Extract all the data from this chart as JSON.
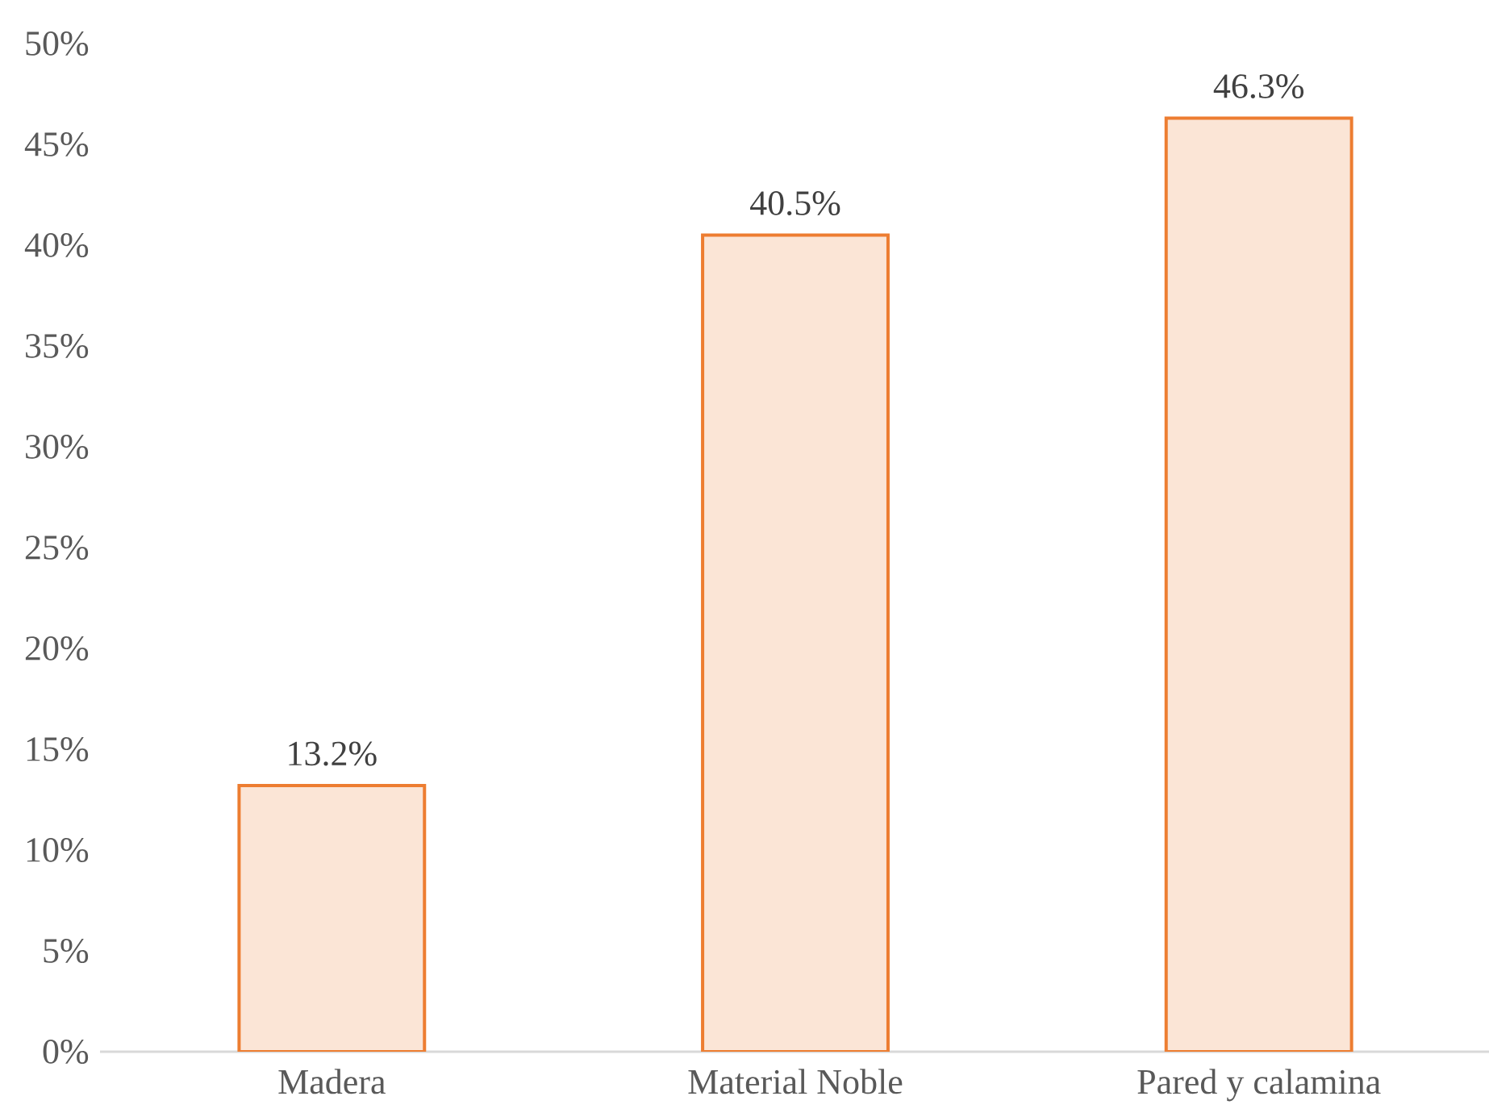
{
  "chart_data": {
    "type": "bar",
    "categories": [
      "Madera",
      "Material Noble",
      "Pared y calamina"
    ],
    "values": [
      13.2,
      40.5,
      46.3
    ],
    "value_labels": [
      "13.2%",
      "40.5%",
      "46.3%"
    ],
    "color": "#fbe5d6",
    "ylim": [
      0,
      50
    ],
    "yticks": [
      {
        "value": 0,
        "label": "0%"
      },
      {
        "value": 5,
        "label": "5%"
      },
      {
        "value": 10,
        "label": "10%"
      },
      {
        "value": 15,
        "label": "15%"
      },
      {
        "value": 20,
        "label": "20%"
      },
      {
        "value": 25,
        "label": "25%"
      },
      {
        "value": 30,
        "label": "30%"
      },
      {
        "value": 35,
        "label": "35%"
      },
      {
        "value": 40,
        "label": "40%"
      },
      {
        "value": 45,
        "label": "45%"
      },
      {
        "value": 50,
        "label": "50%"
      }
    ],
    "grid": false
  }
}
